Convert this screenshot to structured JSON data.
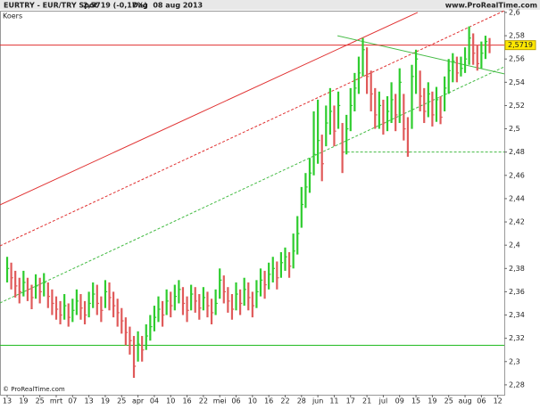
{
  "chart_data": {
    "type": "ohlc",
    "title": "EURTRY - EUR/TRY Spot",
    "last_change": "2,5719 (-0,17%)",
    "period": "Dag  08 aug 2013",
    "source": "www.ProRealTime.com",
    "panel_label": "Koers",
    "copyright": "© ProRealTime.com",
    "up_color": "#2ecc2e",
    "down_color": "#e05a5a",
    "last_price": {
      "value": 2.5719,
      "label": "2,5719"
    },
    "last_price_color": "#e03030",
    "xlim": [
      -1.75,
      121.6
    ],
    "ylim": [
      2.2715,
      2.6015
    ],
    "yticks": [
      {
        "value": 2.28,
        "label": "2,28"
      },
      {
        "value": 2.3,
        "label": "2,3"
      },
      {
        "value": 2.32,
        "label": "2,32"
      },
      {
        "value": 2.34,
        "label": "2,34"
      },
      {
        "value": 2.36,
        "label": "2,36"
      },
      {
        "value": 2.38,
        "label": "2,38"
      },
      {
        "value": 2.4,
        "label": "2,4"
      },
      {
        "value": 2.42,
        "label": "2,42"
      },
      {
        "value": 2.44,
        "label": "2,44"
      },
      {
        "value": 2.46,
        "label": "2,46"
      },
      {
        "value": 2.48,
        "label": "2,48"
      },
      {
        "value": 2.5,
        "label": "2,5"
      },
      {
        "value": 2.52,
        "label": "2,52"
      },
      {
        "value": 2.54,
        "label": "2,54"
      },
      {
        "value": 2.56,
        "label": "2,56"
      },
      {
        "value": 2.58,
        "label": "2,58"
      },
      {
        "value": 2.6,
        "label": "2,6"
      }
    ],
    "categories": [
      "13",
      null,
      null,
      null,
      "19",
      null,
      null,
      null,
      "25",
      null,
      null,
      null,
      "mrt",
      null,
      null,
      null,
      "07",
      null,
      null,
      null,
      "13",
      null,
      null,
      null,
      "19",
      null,
      null,
      null,
      "25",
      null,
      null,
      null,
      "apr",
      null,
      null,
      null,
      "04",
      null,
      null,
      null,
      "10",
      null,
      null,
      null,
      "16",
      null,
      null,
      null,
      "22",
      null,
      null,
      null,
      "mei",
      null,
      null,
      null,
      "06",
      null,
      null,
      null,
      "10",
      null,
      null,
      null,
      "16",
      null,
      null,
      null,
      "22",
      null,
      null,
      null,
      "28",
      null,
      null,
      null,
      "jun",
      null,
      null,
      null,
      "11",
      null,
      null,
      null,
      "17",
      null,
      null,
      null,
      "21",
      null,
      null,
      null,
      "jul",
      null,
      null,
      null,
      "09",
      null,
      null,
      null,
      "15",
      null,
      null,
      null,
      "19",
      null,
      null,
      null,
      "25",
      null,
      null,
      null,
      "aug",
      null,
      null,
      null,
      "06",
      null,
      null,
      null,
      "12"
    ],
    "high": [
      2.39,
      2.385,
      2.378,
      2.372,
      2.378,
      2.372,
      2.366,
      2.375,
      2.372,
      2.376,
      2.368,
      2.362,
      2.356,
      2.352,
      2.358,
      2.35,
      2.354,
      2.362,
      2.358,
      2.352,
      2.36,
      2.368,
      2.366,
      2.356,
      2.37,
      2.368,
      2.36,
      2.354,
      2.346,
      2.338,
      2.33,
      2.322,
      2.326,
      2.322,
      2.332,
      2.34,
      2.348,
      2.356,
      2.352,
      2.362,
      2.36,
      2.366,
      2.37,
      2.364,
      2.356,
      2.366,
      2.364,
      2.358,
      2.364,
      2.36,
      2.354,
      2.362,
      2.38,
      2.374,
      2.364,
      2.358,
      2.368,
      2.362,
      2.372,
      2.368,
      2.36,
      2.37,
      2.38,
      2.378,
      2.385,
      2.39,
      2.386,
      2.394,
      2.398,
      2.394,
      2.41,
      2.425,
      2.45,
      2.462,
      2.475,
      2.515,
      2.525,
      2.495,
      2.52,
      2.535,
      2.52,
      2.532,
      2.505,
      2.512,
      2.535,
      2.548,
      2.562,
      2.578,
      2.57,
      2.55,
      2.535,
      2.532,
      2.525,
      2.528,
      2.54,
      2.53,
      2.552,
      2.53,
      2.51,
      2.555,
      2.568,
      2.55,
      2.535,
      2.54,
      2.532,
      2.536,
      2.528,
      2.545,
      2.56,
      2.565,
      2.562,
      2.562,
      2.57,
      2.588,
      2.582,
      2.572,
      2.575,
      2.58,
      2.578,
      null,
      null
    ],
    "low": [
      2.368,
      2.362,
      2.355,
      2.35,
      2.356,
      2.352,
      2.345,
      2.354,
      2.35,
      2.356,
      2.346,
      2.34,
      2.336,
      2.332,
      2.336,
      2.33,
      2.334,
      2.34,
      2.336,
      2.332,
      2.338,
      2.346,
      2.34,
      2.334,
      2.346,
      2.344,
      2.338,
      2.33,
      2.324,
      2.314,
      2.306,
      2.286,
      2.3,
      2.3,
      2.31,
      2.318,
      2.326,
      2.334,
      2.33,
      2.34,
      2.338,
      2.344,
      2.35,
      2.34,
      2.334,
      2.344,
      2.342,
      2.336,
      2.344,
      2.338,
      2.332,
      2.34,
      2.354,
      2.35,
      2.342,
      2.336,
      2.344,
      2.34,
      2.348,
      2.344,
      2.338,
      2.346,
      2.356,
      2.354,
      2.362,
      2.368,
      2.362,
      2.372,
      2.378,
      2.372,
      2.38,
      2.392,
      2.415,
      2.432,
      2.445,
      2.46,
      2.47,
      2.455,
      2.485,
      2.495,
      2.485,
      2.5,
      2.462,
      2.478,
      2.498,
      2.515,
      2.53,
      2.545,
      2.53,
      2.515,
      2.5,
      2.5,
      2.495,
      2.498,
      2.505,
      2.498,
      2.505,
      2.49,
      2.476,
      2.5,
      2.53,
      2.515,
      2.505,
      2.51,
      2.502,
      2.506,
      2.504,
      2.515,
      2.53,
      2.54,
      2.54,
      2.545,
      2.548,
      2.555,
      2.555,
      2.55,
      2.552,
      2.56,
      2.565,
      null,
      null
    ],
    "close": [
      2.38,
      2.372,
      2.365,
      2.36,
      2.368,
      2.362,
      2.355,
      2.365,
      2.36,
      2.368,
      2.356,
      2.35,
      2.345,
      2.34,
      2.348,
      2.338,
      2.344,
      2.352,
      2.346,
      2.34,
      2.35,
      2.358,
      2.35,
      2.344,
      2.36,
      2.355,
      2.348,
      2.342,
      2.335,
      2.325,
      2.318,
      2.296,
      2.315,
      2.31,
      2.322,
      2.33,
      2.338,
      2.345,
      2.34,
      2.352,
      2.348,
      2.356,
      2.362,
      2.35,
      2.344,
      2.358,
      2.352,
      2.346,
      2.355,
      2.348,
      2.342,
      2.35,
      2.37,
      2.36,
      2.352,
      2.345,
      2.358,
      2.35,
      2.362,
      2.355,
      2.348,
      2.36,
      2.37,
      2.366,
      2.375,
      2.38,
      2.372,
      2.385,
      2.39,
      2.382,
      2.395,
      2.41,
      2.435,
      2.45,
      2.462,
      2.478,
      2.49,
      2.47,
      2.505,
      2.515,
      2.498,
      2.52,
      2.48,
      2.5,
      2.52,
      2.535,
      2.548,
      2.568,
      2.545,
      2.53,
      2.512,
      2.52,
      2.505,
      2.515,
      2.525,
      2.512,
      2.54,
      2.5,
      2.48,
      2.545,
      2.56,
      2.528,
      2.515,
      2.53,
      2.512,
      2.525,
      2.51,
      2.535,
      2.55,
      2.558,
      2.548,
      2.552,
      2.56,
      2.578,
      2.565,
      2.556,
      2.565,
      2.575,
      2.5719,
      null,
      null
    ],
    "lines": [
      {
        "color": "#e03030",
        "dash": false,
        "x": [
          -1.75,
          100.4
        ],
        "y": [
          2.4346,
          2.6
        ]
      },
      {
        "color": "#e03030",
        "dash": true,
        "x": [
          -1.75,
          121.6
        ],
        "y": [
          2.3994,
          2.6015
        ]
      },
      {
        "color": "#44bb44",
        "dash": true,
        "x": [
          -1.75,
          121.6
        ],
        "y": [
          2.3504,
          2.5533
        ]
      },
      {
        "color": "#44bb44",
        "dash": false,
        "x": [
          80.8,
          121.6
        ],
        "y": [
          2.58,
          2.5472
        ]
      },
      {
        "color": "#22bb22",
        "dash": false,
        "x": [
          -1.75,
          121.6
        ],
        "y": [
          2.314,
          2.314
        ]
      },
      {
        "color": "#44bb44",
        "dash": true,
        "x": [
          82,
          121.6
        ],
        "y": [
          2.48,
          2.48
        ]
      }
    ]
  }
}
